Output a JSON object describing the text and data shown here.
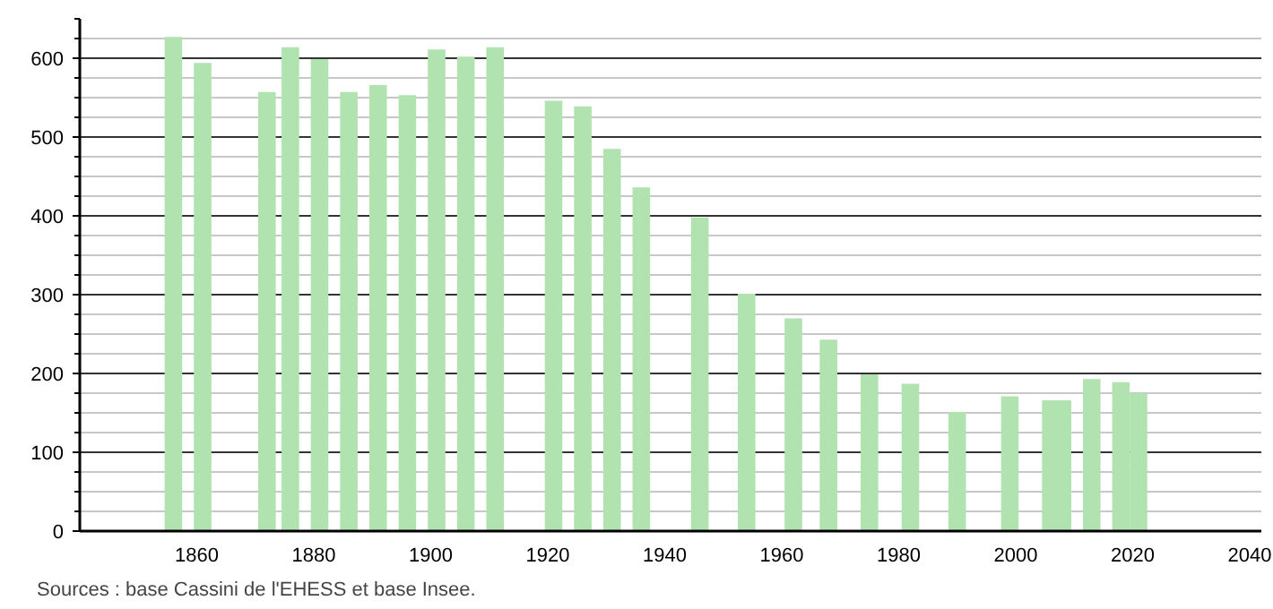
{
  "chart_data": {
    "type": "bar",
    "x": [
      1856,
      1861,
      1872,
      1876,
      1881,
      1886,
      1891,
      1896,
      1901,
      1906,
      1911,
      1921,
      1926,
      1931,
      1936,
      1946,
      1954,
      1962,
      1968,
      1975,
      1982,
      1990,
      1999,
      2006,
      2008,
      2013,
      2018,
      2021
    ],
    "values": [
      627,
      594,
      557,
      614,
      599,
      557,
      566,
      553,
      611,
      602,
      614,
      546,
      539,
      485,
      436,
      398,
      301,
      270,
      243,
      199,
      187,
      151,
      171,
      166,
      166,
      193,
      189,
      175
    ],
    "color": "#b0e3b0",
    "xlim": [
      1840,
      2042
    ],
    "xticks": [
      1860,
      1880,
      1900,
      1920,
      1940,
      1960,
      1980,
      2000,
      2020,
      2040
    ],
    "ylim": [
      0,
      650
    ],
    "yticks": [
      0,
      100,
      200,
      300,
      400,
      500,
      600
    ],
    "grid": "y",
    "annotations": [
      "Sources : base Cassini de l'EHESS et base Insee."
    ]
  }
}
